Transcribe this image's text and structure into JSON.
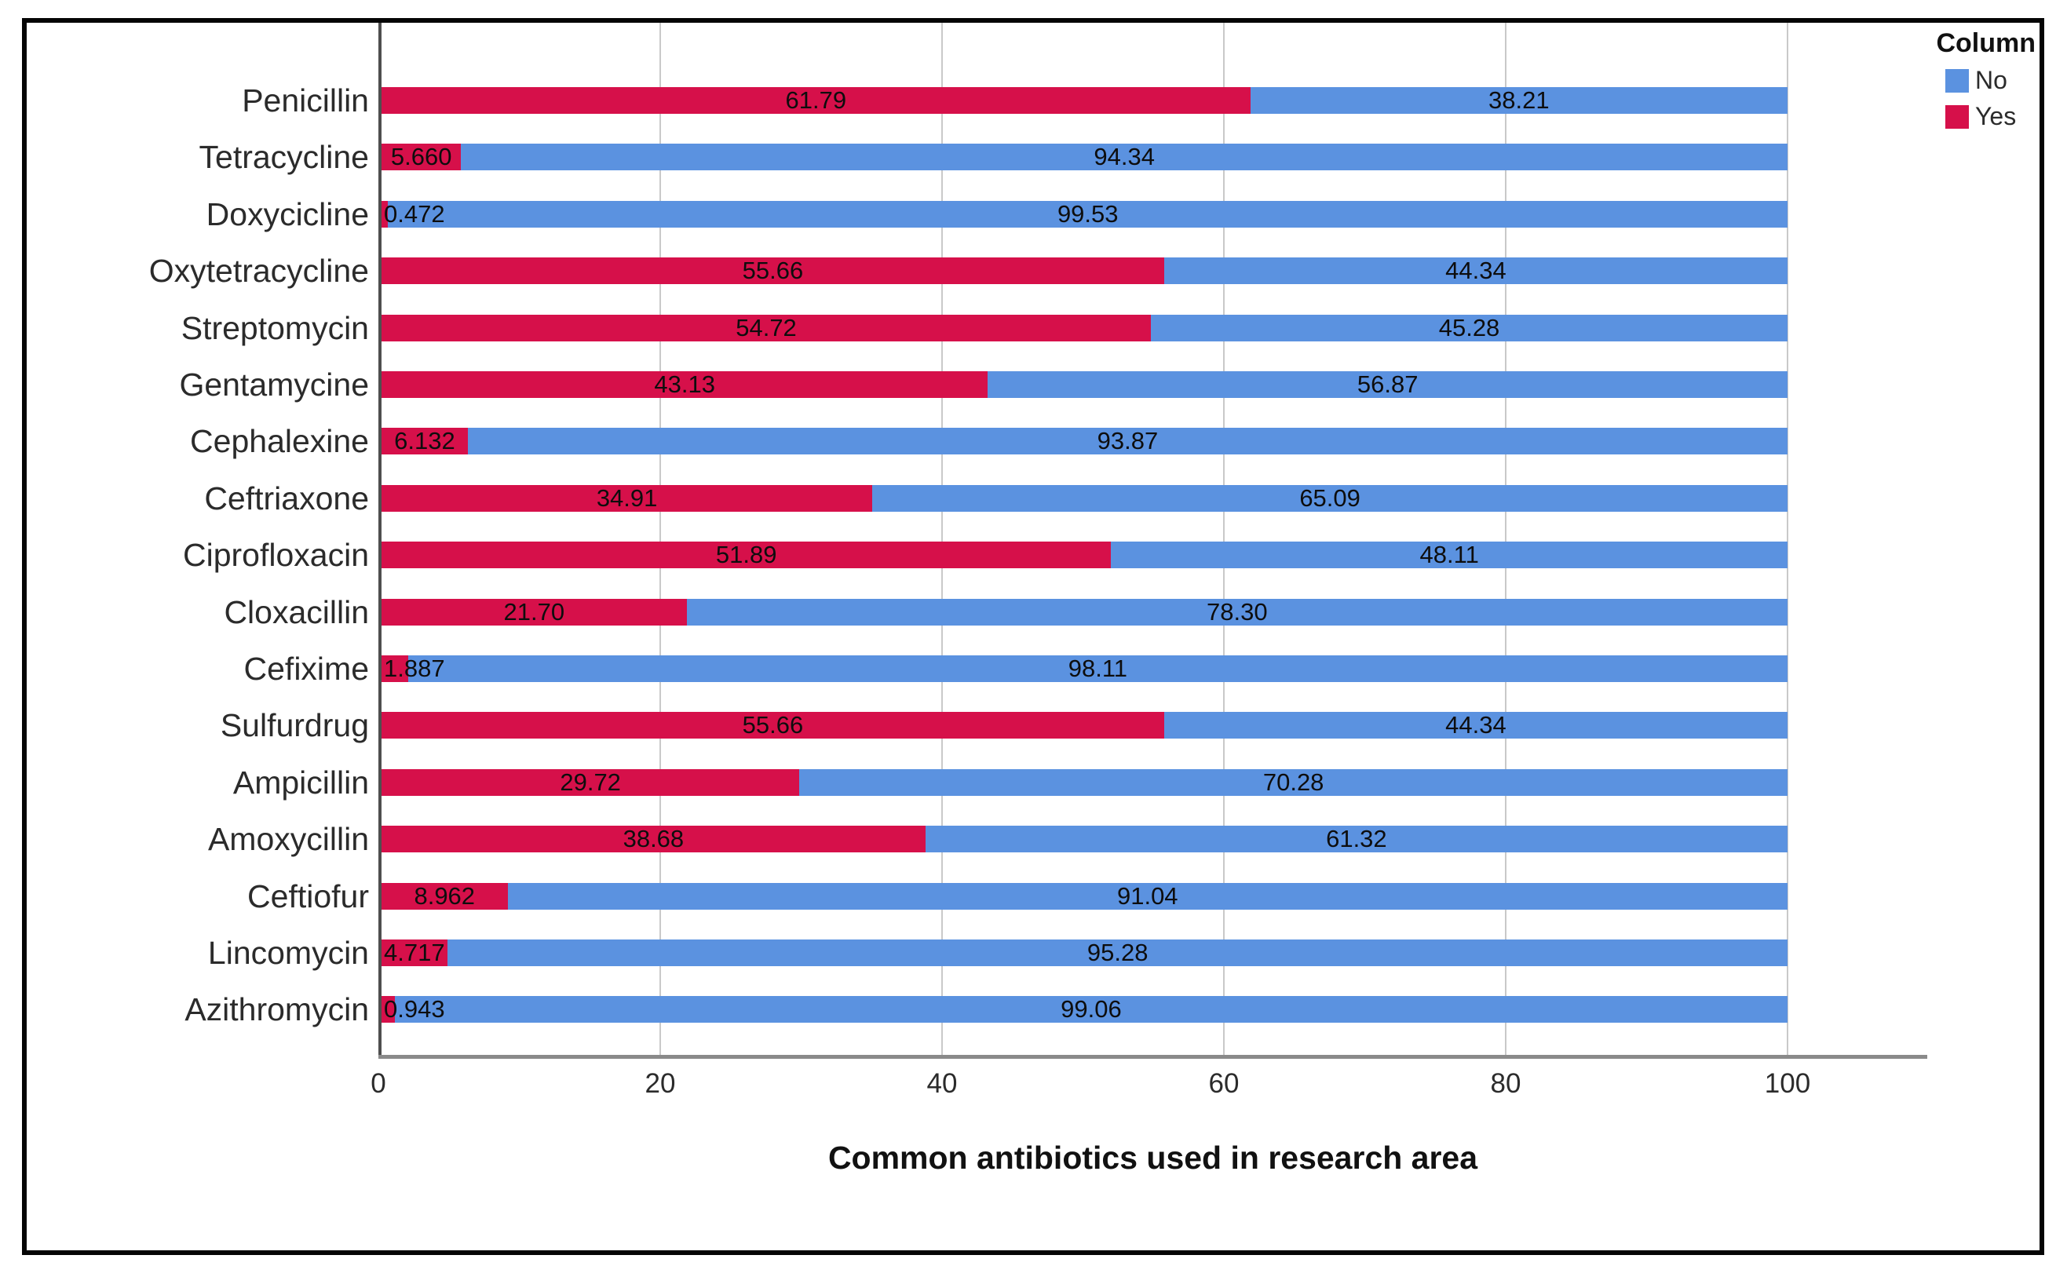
{
  "legend": {
    "title": "Column",
    "position": "top-right",
    "items": [
      {
        "label": "No",
        "color": "#5b92e0"
      },
      {
        "label": "Yes",
        "color": "#d6104a"
      }
    ]
  },
  "colors": {
    "yes_red": "#d6104a",
    "no_blue": "#5b92e0",
    "gridline": "#c9c9c9",
    "y_axis": "#4f4f4f",
    "x_axis": "#8a8a8a",
    "figure_border": "#050505"
  },
  "chart_data": {
    "type": "bar",
    "orientation": "horizontal-stacked",
    "title": "",
    "xlabel": "Common antibiotics used in research area",
    "ylabel": "",
    "xlim": [
      0,
      110
    ],
    "xticks": [
      "0",
      "20",
      "40",
      "60",
      "80",
      "100"
    ],
    "grid": "vertical gridlines at 20/40/60/80/100",
    "legend_position": "top-right",
    "categories": [
      "Penicillin",
      "Tetracycline",
      "Doxycicline",
      "Oxytetracycline",
      "Streptomycin",
      "Gentamycine",
      "Cephalexine",
      "Ceftriaxone",
      "Ciprofloxacin",
      "Cloxacillin",
      "Cefixime",
      "Sulfurdrug",
      "Ampicillin",
      "Amoxycillin",
      "Ceftiofur",
      "Lincomycin",
      "Azithromycin"
    ],
    "series": [
      {
        "name": "Yes",
        "color": "#d6104a",
        "values": [
          61.79,
          5.66,
          0.472,
          55.66,
          54.72,
          43.13,
          6.132,
          34.91,
          51.89,
          21.7,
          1.887,
          55.66,
          29.72,
          38.68,
          8.962,
          4.717,
          0.943
        ],
        "labels": [
          "61.79",
          "5.660",
          "0.472",
          "55.66",
          "54.72",
          "43.13",
          "6.132",
          "34.91",
          "51.89",
          "21.70",
          "1.887",
          "55.66",
          "29.72",
          "38.68",
          "8.962",
          "4.717",
          "0.943"
        ]
      },
      {
        "name": "No",
        "color": "#5b92e0",
        "values": [
          38.21,
          94.34,
          99.53,
          44.34,
          45.28,
          56.87,
          93.87,
          65.09,
          48.11,
          78.3,
          98.11,
          44.34,
          70.28,
          61.32,
          91.04,
          95.28,
          99.06
        ],
        "labels": [
          "38.21",
          "94.34",
          "99.53",
          "44.34",
          "45.28",
          "56.87",
          "93.87",
          "65.09",
          "48.11",
          "78.30",
          "98.11",
          "44.34",
          "70.28",
          "61.32",
          "91.04",
          "95.28",
          "99.06"
        ]
      }
    ]
  }
}
